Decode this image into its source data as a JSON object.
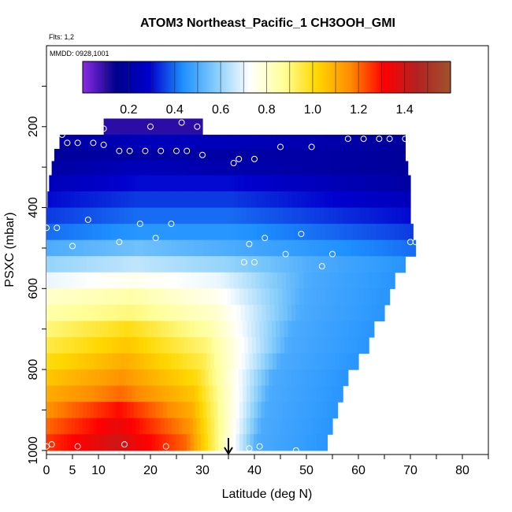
{
  "title": "ATOM3 Northeast_Pacific_1 CH3OOH_GMI",
  "flights_label": "Flts: 1,2",
  "date_label": "MMDD: 0928,1001",
  "chart_data": {
    "type": "heatmap",
    "title": "ATOM3 Northeast_Pacific_1 CH3OOH_GMI",
    "xlabel": "Latitude (deg N)",
    "ylabel": "PSXC (mbar)",
    "xlim": [
      0,
      85
    ],
    "ylim": [
      1010,
      0
    ],
    "x_ticks": [
      0,
      5,
      10,
      20,
      30,
      40,
      50,
      60,
      70,
      80
    ],
    "y_ticks": [
      200,
      400,
      600,
      800,
      1000
    ],
    "colorbar": {
      "range": [
        0.0,
        1.6
      ],
      "ticks": [
        "0.2",
        "0.4",
        "0.6",
        "0.8",
        "1.0",
        "1.2",
        "1.4"
      ],
      "tick_values": [
        0.2,
        0.4,
        0.6,
        0.8,
        1.0,
        1.2,
        1.4
      ],
      "colors": [
        "#8a2be2",
        "#00008b",
        "#0000cd",
        "#1e90ff",
        "#87cefa",
        "#ffffff",
        "#ffff99",
        "#ffd700",
        "#ff8c00",
        "#ff0000",
        "#b22222",
        "#a0522d"
      ]
    },
    "bands": [
      {
        "p": 200,
        "lat_min": 11,
        "lat_max": 30,
        "values": [
          0.1,
          0.1
        ]
      },
      {
        "p": 240,
        "lat_min": 2.5,
        "lat_max": 69,
        "values": [
          0.2,
          0.25,
          0.25,
          0.22,
          0.18
        ]
      },
      {
        "p": 270,
        "lat_min": 1.5,
        "lat_max": 69,
        "values": [
          0.18,
          0.2,
          0.2,
          0.2,
          0.18
        ]
      },
      {
        "p": 300,
        "lat_min": 1,
        "lat_max": 69.5,
        "values": [
          0.2,
          0.25,
          0.22,
          0.2,
          0.18
        ]
      },
      {
        "p": 340,
        "lat_min": 0.5,
        "lat_max": 70,
        "values": [
          0.25,
          0.3,
          0.3,
          0.25,
          0.2
        ]
      },
      {
        "p": 380,
        "lat_min": 0.2,
        "lat_max": 70,
        "values": [
          0.3,
          0.35,
          0.35,
          0.3,
          0.25
        ]
      },
      {
        "p": 420,
        "lat_min": 0,
        "lat_max": 70,
        "values": [
          0.35,
          0.4,
          0.4,
          0.35,
          0.3
        ]
      },
      {
        "p": 460,
        "lat_min": 0,
        "lat_max": 70.5,
        "values": [
          0.4,
          0.45,
          0.45,
          0.4,
          0.35
        ]
      },
      {
        "p": 500,
        "lat_min": 0,
        "lat_max": 71,
        "values": [
          0.5,
          0.55,
          0.5,
          0.45,
          0.4
        ]
      },
      {
        "p": 540,
        "lat_min": 0,
        "lat_max": 69,
        "values": [
          0.6,
          0.65,
          0.6,
          0.5,
          0.45
        ]
      },
      {
        "p": 580,
        "lat_min": 0,
        "lat_max": 67,
        "values": [
          0.7,
          0.75,
          0.7,
          0.5,
          0.45
        ]
      },
      {
        "p": 620,
        "lat_min": 0,
        "lat_max": 66,
        "values": [
          0.8,
          0.85,
          0.75,
          0.5,
          0.45
        ]
      },
      {
        "p": 660,
        "lat_min": 0,
        "lat_max": 65,
        "values": [
          0.85,
          0.9,
          0.8,
          0.5,
          0.45
        ]
      },
      {
        "p": 700,
        "lat_min": 0,
        "lat_max": 63,
        "values": [
          0.9,
          1.0,
          0.85,
          0.5,
          0.45
        ]
      },
      {
        "p": 740,
        "lat_min": 0,
        "lat_max": 62,
        "values": [
          0.95,
          1.05,
          0.9,
          0.5,
          0.45
        ]
      },
      {
        "p": 780,
        "lat_min": 0,
        "lat_max": 60,
        "values": [
          1.0,
          1.1,
          0.95,
          0.5,
          0.45
        ]
      },
      {
        "p": 820,
        "lat_min": 0,
        "lat_max": 58,
        "values": [
          1.05,
          1.15,
          1.0,
          0.5,
          0.45
        ]
      },
      {
        "p": 860,
        "lat_min": 0,
        "lat_max": 57,
        "values": [
          1.1,
          1.2,
          1.05,
          0.5,
          0.45
        ]
      },
      {
        "p": 900,
        "lat_min": 0,
        "lat_max": 56,
        "values": [
          1.15,
          1.3,
          1.1,
          0.5,
          0.45
        ]
      },
      {
        "p": 940,
        "lat_min": 0,
        "lat_max": 55,
        "values": [
          1.2,
          1.35,
          1.15,
          0.5,
          0.45
        ]
      },
      {
        "p": 980,
        "lat_min": 0,
        "lat_max": 54,
        "values": [
          1.25,
          1.4,
          1.2,
          0.5,
          0.45
        ]
      }
    ],
    "observations": [
      [
        0,
        990
      ],
      [
        1,
        985
      ],
      [
        6,
        990
      ],
      [
        15,
        985
      ],
      [
        23,
        990
      ],
      [
        39,
        995
      ],
      [
        41,
        990
      ],
      [
        48,
        1000
      ],
      [
        3,
        220
      ],
      [
        4,
        240
      ],
      [
        6,
        240
      ],
      [
        9,
        240
      ],
      [
        11,
        245
      ],
      [
        14,
        260
      ],
      [
        16,
        260
      ],
      [
        19,
        260
      ],
      [
        22,
        260
      ],
      [
        25,
        260
      ],
      [
        27,
        260
      ],
      [
        30,
        270
      ],
      [
        36,
        290
      ],
      [
        37,
        280
      ],
      [
        40,
        280
      ],
      [
        45,
        250
      ],
      [
        51,
        250
      ],
      [
        58,
        230
      ],
      [
        61,
        230
      ],
      [
        64,
        230
      ],
      [
        66,
        230
      ],
      [
        69,
        230
      ],
      [
        11,
        205
      ],
      [
        20,
        200
      ],
      [
        26,
        190
      ],
      [
        29,
        200
      ],
      [
        0,
        450
      ],
      [
        2,
        450
      ],
      [
        5,
        495
      ],
      [
        8,
        430
      ],
      [
        14,
        485
      ],
      [
        18,
        440
      ],
      [
        21,
        475
      ],
      [
        24,
        440
      ],
      [
        39,
        490
      ],
      [
        42,
        475
      ],
      [
        38,
        535
      ],
      [
        40,
        535
      ],
      [
        46,
        515
      ],
      [
        49,
        465
      ],
      [
        53,
        545
      ],
      [
        55,
        515
      ],
      [
        70,
        485
      ],
      [
        71,
        485
      ]
    ],
    "arrow_x": 35
  }
}
